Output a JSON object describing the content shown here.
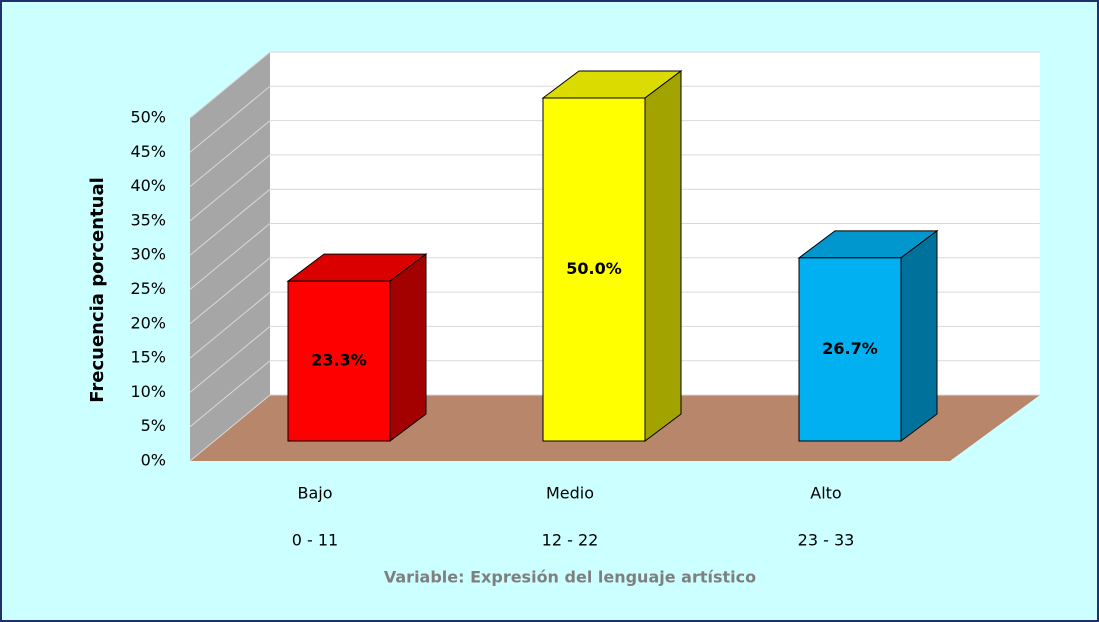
{
  "chart_data": {
    "type": "bar3d",
    "y_label": "Frecuencia porcentual",
    "x_label": "Variable: Expresión del lenguaje artístico",
    "categories": [
      [
        "Bajo",
        "0 - 11"
      ],
      [
        "Medio",
        "12 - 22"
      ],
      [
        "Alto",
        "23 - 33"
      ]
    ],
    "values": [
      23.3,
      50.0,
      26.7
    ],
    "value_labels": [
      "23.3%",
      "50.0%",
      "26.7%"
    ],
    "colors": [
      "#ff0000",
      "#ffff00",
      "#00b0f0"
    ],
    "ylim": [
      0,
      50
    ],
    "yticks": [
      {
        "value": 0,
        "label": "0%"
      },
      {
        "value": 5,
        "label": "5%"
      },
      {
        "value": 10,
        "label": "10%"
      },
      {
        "value": 15,
        "label": "15%"
      },
      {
        "value": 20,
        "label": "20%"
      },
      {
        "value": 25,
        "label": "25%"
      },
      {
        "value": 30,
        "label": "30%"
      },
      {
        "value": 35,
        "label": "35%"
      },
      {
        "value": 40,
        "label": "40%"
      },
      {
        "value": 45,
        "label": "45%"
      },
      {
        "value": 50,
        "label": "50%"
      }
    ],
    "grid": true
  }
}
